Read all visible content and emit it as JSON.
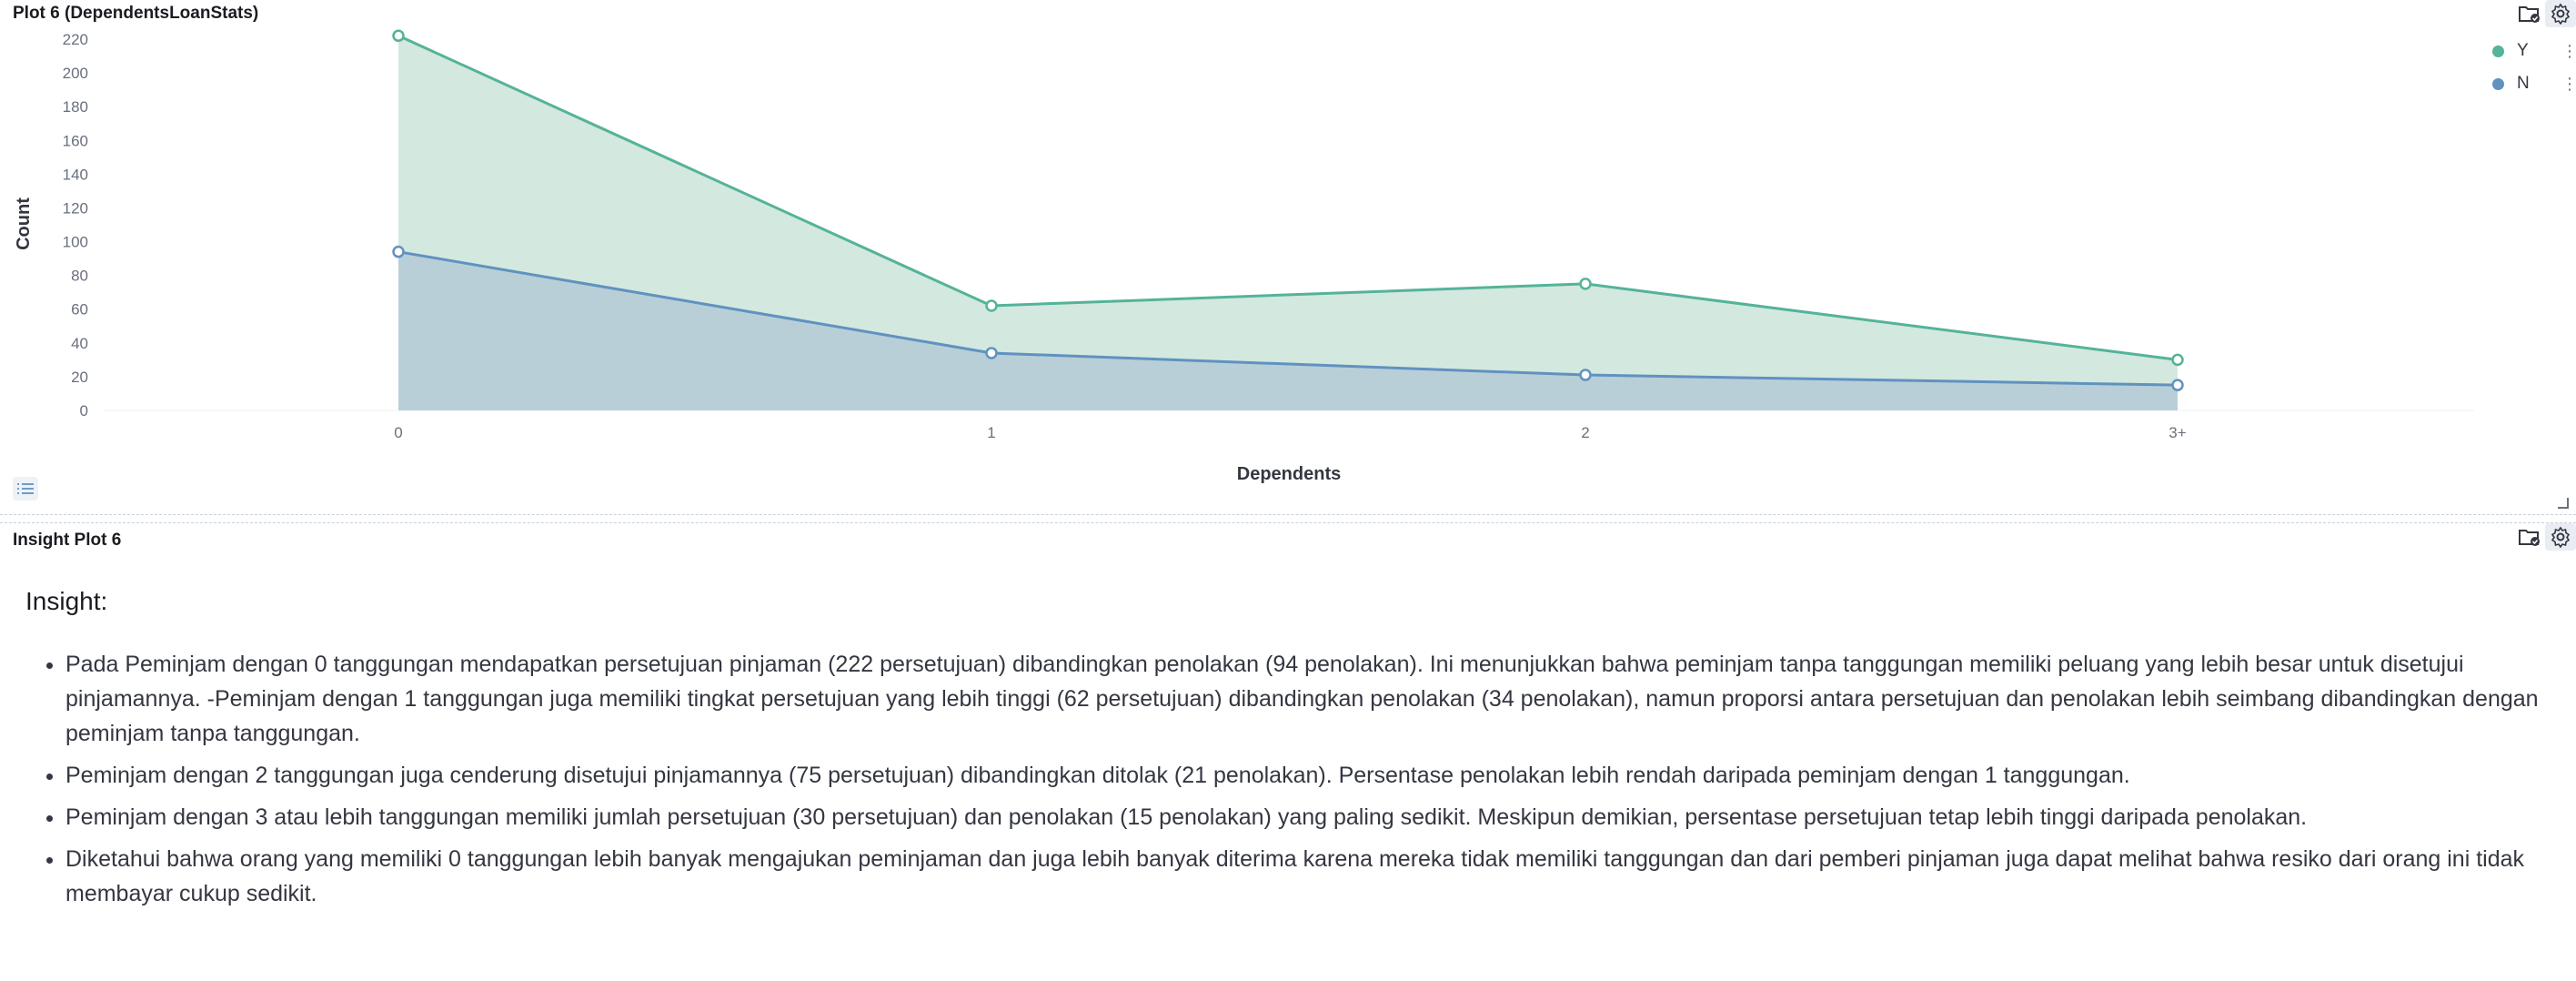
{
  "plot_panel": {
    "title": "Plot 6 (DependentsLoanStats)"
  },
  "insight_panel": {
    "title": "Insight Plot 6",
    "heading": "Insight:",
    "bullets": [
      "Pada Peminjam dengan 0 tanggungan mendapatkan persetujuan pinjaman (222 persetujuan) dibandingkan penolakan (94 penolakan). Ini menunjukkan bahwa peminjam tanpa tanggungan memiliki peluang yang lebih besar untuk disetujui pinjamannya. -Peminjam dengan 1 tanggungan juga memiliki tingkat persetujuan yang lebih tinggi (62 persetujuan) dibandingkan penolakan (34 penolakan), namun proporsi antara persetujuan dan penolakan lebih seimbang dibandingkan dengan peminjam tanpa tanggungan.",
      "Peminjam dengan 2 tanggungan juga cenderung disetujui pinjamannya (75 persetujuan) dibandingkan ditolak (21 penolakan). Persentase penolakan lebih rendah daripada peminjam dengan 1 tanggungan.",
      "Peminjam dengan 3 atau lebih tanggungan memiliki jumlah persetujuan (30 persetujuan) dan penolakan (15 penolakan) yang paling sedikit. Meskipun demikian, persentase persetujuan tetap lebih tinggi daripada penolakan.",
      "Diketahui bahwa orang yang memiliki 0 tanggungan lebih banyak mengajukan peminjaman dan juga lebih banyak diterima karena mereka tidak memiliki tanggungan dan dari pemberi pinjaman juga dapat melihat bahwa resiko dari orang ini tidak membayar cukup sedikit."
    ]
  },
  "icons": {
    "save": "folder-check-icon",
    "settings": "gear-icon",
    "legend_menu": "vertical-dots-icon",
    "table": "list-icon"
  },
  "chart_data": {
    "type": "area",
    "title": "",
    "xlabel": "Dependents",
    "ylabel": "Count",
    "categories": [
      "0",
      "1",
      "2",
      "3+"
    ],
    "ylim": [
      0,
      220
    ],
    "yticks": [
      0,
      20,
      40,
      60,
      80,
      100,
      120,
      140,
      160,
      180,
      200,
      220
    ],
    "grid": false,
    "legend_position": "top-right",
    "series": [
      {
        "name": "Y",
        "values": [
          222,
          62,
          75,
          30
        ],
        "color": "#54b399",
        "fill": "#d3e8df"
      },
      {
        "name": "N",
        "values": [
          94,
          34,
          21,
          15
        ],
        "color": "#6092c0",
        "fill": "#b6ced6"
      }
    ]
  }
}
